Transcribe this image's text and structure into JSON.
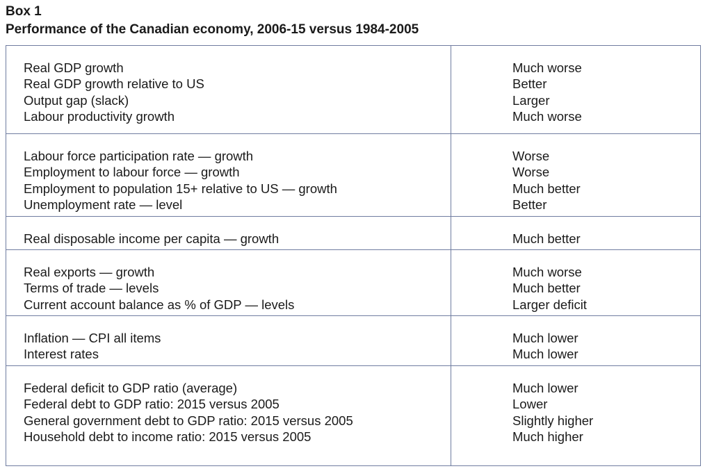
{
  "box_label": "Box 1",
  "title": "Performance of the Canadian economy, 2006-15 versus 1984-2005",
  "groups": [
    {
      "indicators": [
        "Real GDP growth",
        "Real GDP growth relative to US",
        "Output gap (slack)",
        "Labour productivity growth"
      ],
      "assessments": [
        "Much worse",
        "Better",
        "Larger",
        "Much worse"
      ]
    },
    {
      "indicators": [
        "Labour force participation rate — growth",
        "Employment to labour  force — growth",
        "Employment to population 15+ relative to US — growth",
        "Unemployment rate — level"
      ],
      "assessments": [
        "Worse",
        "Worse",
        "Much better",
        "Better"
      ]
    },
    {
      "indicators": [
        "Real disposable income per capita — growth"
      ],
      "assessments": [
        "Much better"
      ]
    },
    {
      "indicators": [
        "Real exports — growth",
        "Terms of trade — levels",
        "Current account balance as % of GDP — levels"
      ],
      "assessments": [
        "Much worse",
        "Much better",
        "Larger deficit"
      ]
    },
    {
      "indicators": [
        "Inflation — CPI all items",
        "Interest rates"
      ],
      "assessments": [
        "Much lower",
        "Much lower"
      ]
    },
    {
      "indicators": [
        "Federal deficit to GDP ratio (average)",
        "Federal debt to GDP ratio: 2015 versus 2005",
        "General government debt to GDP ratio: 2015 versus 2005",
        "Household debt to income ratio: 2015 versus 2005"
      ],
      "assessments": [
        "Much lower",
        "Lower",
        "Slightly higher",
        "Much higher"
      ]
    }
  ]
}
